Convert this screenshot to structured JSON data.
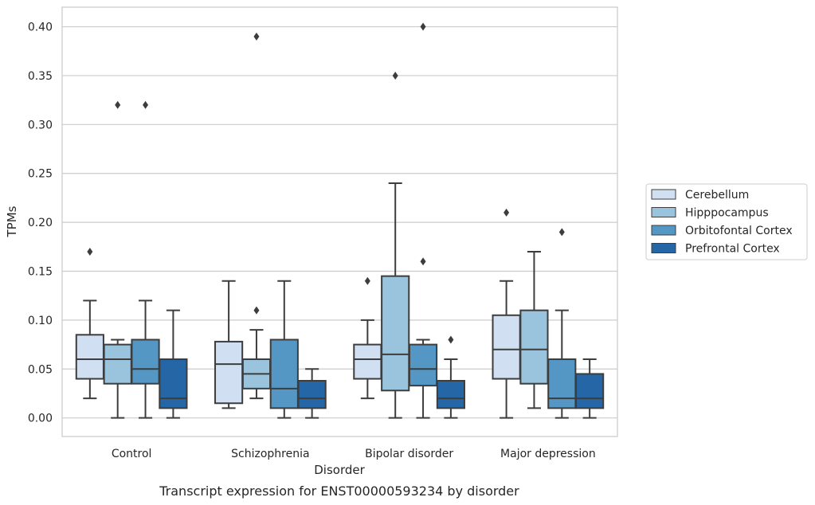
{
  "chart_data": {
    "type": "box",
    "title": "",
    "caption": "Transcript expression for ENST00000593234 by disorder",
    "xlabel": "Disorder",
    "ylabel": "TPMs",
    "ylim": [
      -0.019,
      0.42
    ],
    "yticks": [
      0.0,
      0.05,
      0.1,
      0.15,
      0.2,
      0.25,
      0.3,
      0.35,
      0.4
    ],
    "ytick_labels": [
      "0.00",
      "0.05",
      "0.10",
      "0.15",
      "0.20",
      "0.25",
      "0.30",
      "0.35",
      "0.40"
    ],
    "grid": "horizontal",
    "legend_placement": "right, outside plot",
    "categories": [
      "Control",
      "Schizophrenia",
      "Bipolar disorder",
      "Major depression"
    ],
    "series": [
      {
        "name": "Cerebellum",
        "color": "#d0e0f2",
        "boxes": [
          {
            "whislo": 0.02,
            "q1": 0.04,
            "med": 0.06,
            "q3": 0.085,
            "whishi": 0.12,
            "fliers": [
              0.17
            ]
          },
          {
            "whislo": 0.01,
            "q1": 0.015,
            "med": 0.055,
            "q3": 0.078,
            "whishi": 0.14,
            "fliers": []
          },
          {
            "whislo": 0.02,
            "q1": 0.04,
            "med": 0.06,
            "q3": 0.075,
            "whishi": 0.1,
            "fliers": [
              0.14
            ]
          },
          {
            "whislo": 0.0,
            "q1": 0.04,
            "med": 0.07,
            "q3": 0.105,
            "whishi": 0.14,
            "fliers": [
              0.21
            ]
          }
        ]
      },
      {
        "name": "Hipppocampus",
        "color": "#9ac4dd",
        "boxes": [
          {
            "whislo": 0.0,
            "q1": 0.035,
            "med": 0.06,
            "q3": 0.075,
            "whishi": 0.08,
            "fliers": [
              0.32
            ]
          },
          {
            "whislo": 0.02,
            "q1": 0.03,
            "med": 0.045,
            "q3": 0.06,
            "whishi": 0.09,
            "fliers": [
              0.11,
              0.39
            ]
          },
          {
            "whislo": 0.0,
            "q1": 0.028,
            "med": 0.065,
            "q3": 0.145,
            "whishi": 0.24,
            "fliers": [
              0.35
            ]
          },
          {
            "whislo": 0.01,
            "q1": 0.035,
            "med": 0.07,
            "q3": 0.11,
            "whishi": 0.17,
            "fliers": []
          }
        ]
      },
      {
        "name": "Orbitofontal Cortex",
        "color": "#5496c4",
        "boxes": [
          {
            "whislo": 0.0,
            "q1": 0.035,
            "med": 0.05,
            "q3": 0.08,
            "whishi": 0.12,
            "fliers": [
              0.32
            ]
          },
          {
            "whislo": 0.0,
            "q1": 0.01,
            "med": 0.03,
            "q3": 0.08,
            "whishi": 0.14,
            "fliers": []
          },
          {
            "whislo": 0.0,
            "q1": 0.033,
            "med": 0.05,
            "q3": 0.075,
            "whishi": 0.08,
            "fliers": [
              0.16,
              0.4
            ]
          },
          {
            "whislo": 0.0,
            "q1": 0.01,
            "med": 0.02,
            "q3": 0.06,
            "whishi": 0.11,
            "fliers": [
              0.19
            ]
          }
        ]
      },
      {
        "name": "Prefrontal Cortex",
        "color": "#2466a6",
        "boxes": [
          {
            "whislo": 0.0,
            "q1": 0.01,
            "med": 0.02,
            "q3": 0.06,
            "whishi": 0.11,
            "fliers": []
          },
          {
            "whislo": 0.0,
            "q1": 0.01,
            "med": 0.02,
            "q3": 0.038,
            "whishi": 0.05,
            "fliers": []
          },
          {
            "whislo": 0.0,
            "q1": 0.01,
            "med": 0.02,
            "q3": 0.038,
            "whishi": 0.06,
            "fliers": [
              0.08
            ]
          },
          {
            "whislo": 0.0,
            "q1": 0.01,
            "med": 0.02,
            "q3": 0.045,
            "whishi": 0.06,
            "fliers": []
          }
        ]
      }
    ]
  }
}
